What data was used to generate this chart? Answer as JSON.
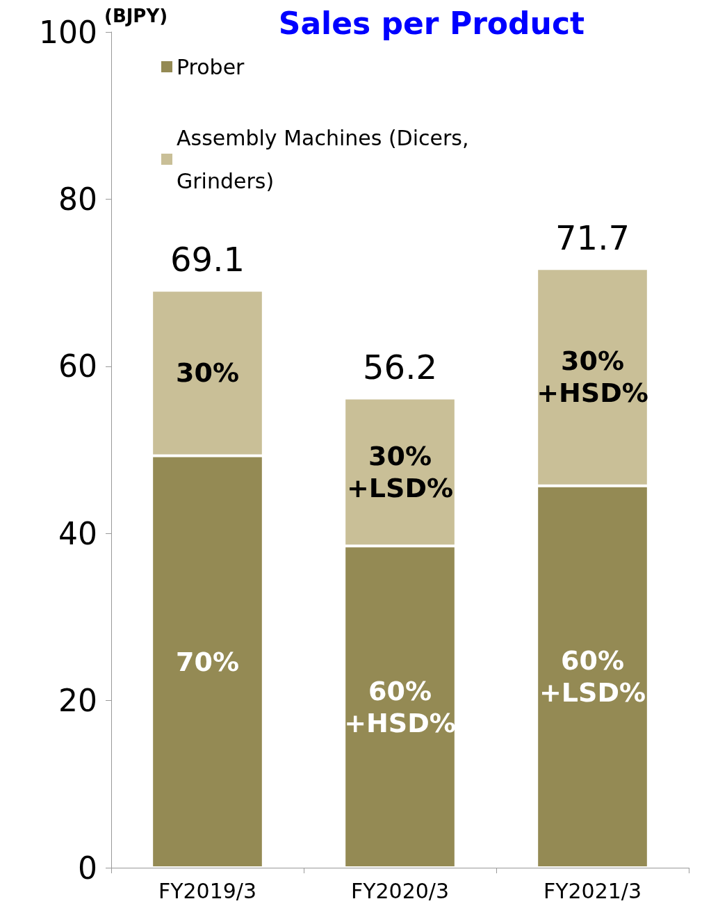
{
  "chart_data": {
    "type": "bar",
    "title": "Sales per Product",
    "ylabel": "(BJPY)",
    "stacked": true,
    "categories": [
      "FY2019/3",
      "FY2020/3",
      "FY2021/3"
    ],
    "series": [
      {
        "name": "Prober",
        "color": "#948a54",
        "values": [
          49.3,
          38.5,
          45.7
        ]
      },
      {
        "name": "Assembly Machines (Dicers, Grinders)",
        "color": "#c9bf97",
        "values": [
          19.8,
          17.7,
          26.0
        ]
      }
    ],
    "annotations": [
      "70%",
      "30%",
      "60%\n+HSD%",
      "30%\n+LSD%",
      "60%\n+LSD%",
      "30%\n+HSD%"
    ],
    "totals": [
      "69.1",
      "56.2",
      "71.7"
    ],
    "ylim": [
      0,
      100
    ],
    "yticks": [
      0,
      20,
      40,
      60,
      80,
      100
    ],
    "grid": false,
    "legend": "top left"
  }
}
